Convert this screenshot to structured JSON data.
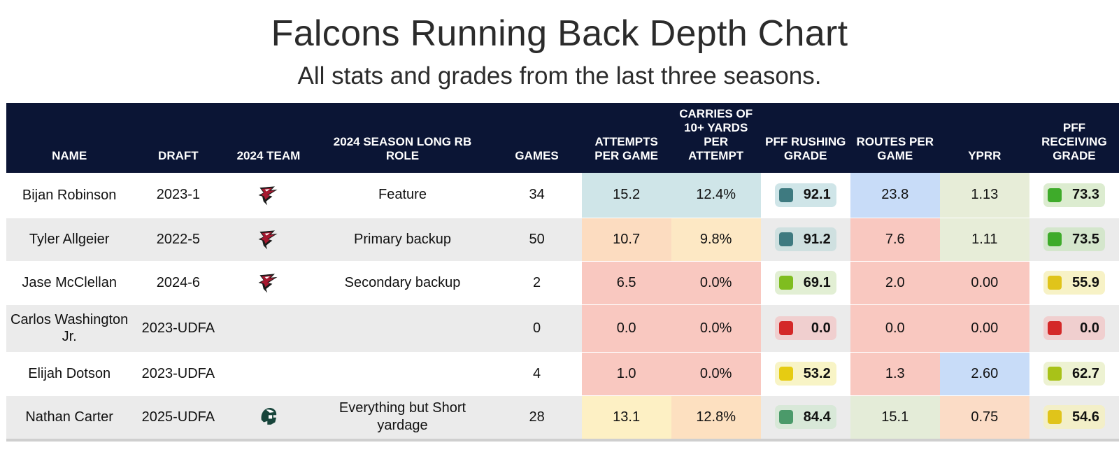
{
  "title": "Falcons Running Back Depth Chart",
  "subtitle": "All stats and grades from the last three seasons.",
  "headers": {
    "name": "NAME",
    "draft": "DRAFT",
    "team": "2024 TEAM",
    "role": "2024 SEASON LONG RB ROLE",
    "games": "GAMES",
    "att": "ATTEMPTS PER GAME",
    "carries10": "CARRIES OF 10+ YARDS PER ATTEMPT",
    "rush_grade": "PFF RUSHING GRADE",
    "routes": "ROUTES PER GAME",
    "yprr": "YPRR",
    "recv_grade": "PFF RECEIVING GRADE"
  },
  "colors": {
    "header_bg": "#0b1535",
    "row_alt": "#ebebeb"
  },
  "rows": [
    {
      "name": "Bijan Robinson",
      "draft": "2023-1",
      "team_icon": "falcons-logo-icon",
      "role": "Feature",
      "games": "34",
      "att": "15.2",
      "att_bg": "#cfe5e8",
      "carries10": "12.4%",
      "c10_bg": "#cfe5e8",
      "rush_grade": "92.1",
      "rush_dot": "#3e7a80",
      "rush_bg": "#cfe5e8",
      "routes": "23.8",
      "routes_bg": "#c8dcf8",
      "yprr": "1.13",
      "yprr_bg": "#e7edd8",
      "recv_grade": "73.3",
      "recv_dot": "#3eab2a",
      "recv_bg": "#dcecd0"
    },
    {
      "name": "Tyler Allgeier",
      "draft": "2022-5",
      "team_icon": "falcons-logo-icon",
      "role": "Primary backup",
      "games": "50",
      "att": "10.7",
      "att_bg": "#fcdcc0",
      "carries10": "9.8%",
      "c10_bg": "#fde8c4",
      "rush_grade": "91.2",
      "rush_dot": "#3e7a80",
      "rush_bg": "#cfe0e0",
      "routes": "7.6",
      "routes_bg": "#f9c8c0",
      "yprr": "1.11",
      "yprr_bg": "#e7edd8",
      "recv_grade": "73.5",
      "recv_dot": "#3eab2a",
      "recv_bg": "#d4e6cc"
    },
    {
      "name": "Jase McClellan",
      "draft": "2024-6",
      "team_icon": "falcons-logo-icon",
      "role": "Secondary backup",
      "games": "2",
      "att": "6.5",
      "att_bg": "#f9c8c0",
      "carries10": "0.0%",
      "c10_bg": "#f9c8c0",
      "rush_grade": "69.1",
      "rush_dot": "#7fbd1f",
      "rush_bg": "#e2efd4",
      "routes": "2.0",
      "routes_bg": "#f9c8c0",
      "yprr": "0.00",
      "yprr_bg": "#f9c8c0",
      "recv_grade": "55.9",
      "recv_dot": "#e0c41a",
      "recv_bg": "#f7f2c6"
    },
    {
      "name": "Carlos Washington Jr.",
      "draft": "2023-UDFA",
      "team_icon": "",
      "role": "",
      "games": "0",
      "att": "0.0",
      "att_bg": "#f9c8c0",
      "carries10": "0.0%",
      "c10_bg": "#f9c8c0",
      "rush_grade": "0.0",
      "rush_dot": "#d42828",
      "rush_bg": "#f0cfcf",
      "routes": "0.0",
      "routes_bg": "#f9c8c0",
      "yprr": "0.00",
      "yprr_bg": "#f9c8c0",
      "recv_grade": "0.0",
      "recv_dot": "#d42828",
      "recv_bg": "#f0cfcf"
    },
    {
      "name": "Elijah Dotson",
      "draft": "2023-UDFA",
      "team_icon": "",
      "role": "",
      "games": "4",
      "att": "1.0",
      "att_bg": "#f9c8c0",
      "carries10": "0.0%",
      "c10_bg": "#f9c8c0",
      "rush_grade": "53.2",
      "rush_dot": "#e6cc12",
      "rush_bg": "#f8f4c6",
      "routes": "1.3",
      "routes_bg": "#f9c8c0",
      "yprr": "2.60",
      "yprr_bg": "#c8dcf8",
      "recv_grade": "62.7",
      "recv_dot": "#a8c218",
      "recv_bg": "#edf2d2"
    },
    {
      "name": "Nathan Carter",
      "draft": "2025-UDFA",
      "team_icon": "spartan-helmet-icon",
      "role": "Everything but Short yardage",
      "games": "28",
      "att": "13.1",
      "att_bg": "#fdf0c4",
      "carries10": "12.8%",
      "c10_bg": "#fde0c0",
      "rush_grade": "84.4",
      "rush_dot": "#4b9a6a",
      "rush_bg": "#d8e8d8",
      "routes": "15.1",
      "routes_bg": "#e4ecd8",
      "yprr": "0.75",
      "yprr_bg": "#fbdcc6",
      "recv_grade": "54.6",
      "recv_dot": "#e0c41a",
      "recv_bg": "#f3efc8"
    }
  ]
}
